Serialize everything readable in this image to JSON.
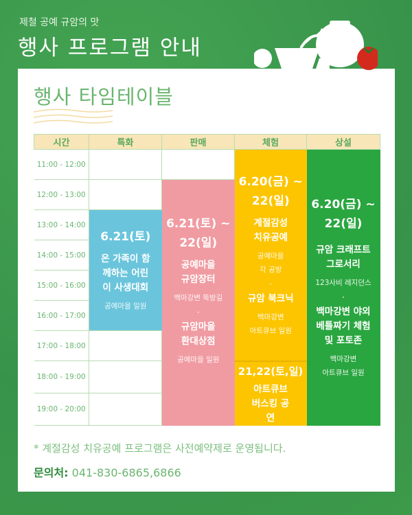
{
  "header": {
    "subtitle": "제철 공예 규암의 맛",
    "title": "행사 프로그램 안내"
  },
  "section_title": "행사 타임테이블",
  "table": {
    "columns": [
      "시간",
      "특화",
      "판매",
      "체험",
      "상설"
    ],
    "times": [
      "11:00 - 12:00",
      "12:00 - 13:00",
      "13:00 - 14:00",
      "14:00 - 15:00",
      "15:00 - 16:00",
      "16:00 - 17:00",
      "17:00 - 18:00",
      "18:00 - 19:00",
      "19:00 - 20:00"
    ],
    "special": {
      "date": "6.21(토)",
      "name": "온 가족이 함께하는 어린이 사생대회",
      "place": "공예마을 일원",
      "color": "#6ac5dc"
    },
    "sales": {
      "date1": "6.21(토) ~",
      "date2": "22(일)",
      "name1": "공예마을 규암장터",
      "place1": "백마강변 뚝방길",
      "name2": "규암마을 환대상점",
      "place2": "공예마을 일원",
      "color": "#f09ba2"
    },
    "experience": {
      "date1": "6.20(금) ~",
      "date2": "22(일)",
      "name1": "계절감성 치유공예",
      "place1a": "공예마을",
      "place1b": "각 공방",
      "name2": "규암 북크닉",
      "place2a": "백마강변",
      "place2b": "아트큐브 일원",
      "date3": "21,22(토,일)",
      "name3": "아트큐브 버스킹 공연",
      "color": "#fcc500"
    },
    "permanent": {
      "date1": "6.20(금) ~",
      "date2": "22(일)",
      "name1": "규암 크래프트 그로서리",
      "place1": "123사비 레지던스",
      "name2": "백마강변 야외 베틀짜기 체험 및 포토존",
      "place2a": "백마강변",
      "place2b": "아트큐브 일원",
      "color": "#2aa640"
    }
  },
  "footer": {
    "note": "*  계절감성 치유공예 프로그램은 사전예약제로 운영됩니다.",
    "contact_label": "문의처:",
    "contact_value": " 041-830-6865,6866"
  }
}
